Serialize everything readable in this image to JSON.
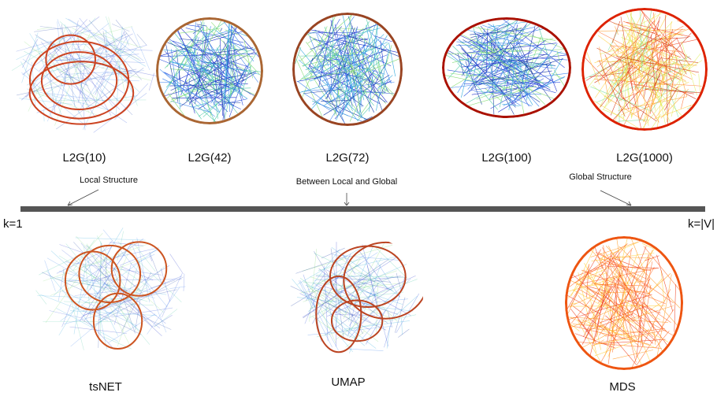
{
  "top_row": {
    "labels": [
      "L2G(10)",
      "L2G(42)",
      "L2G(72)",
      "L2G(100)",
      "L2G(1000)"
    ]
  },
  "scale": {
    "annotations": [
      "Local Structure",
      "Between Local and Global",
      "Global Structure"
    ],
    "start_label": "k=1",
    "end_label": "k=|V|"
  },
  "bottom_row": {
    "labels": [
      "tsNET",
      "UMAP",
      "MDS"
    ]
  }
}
